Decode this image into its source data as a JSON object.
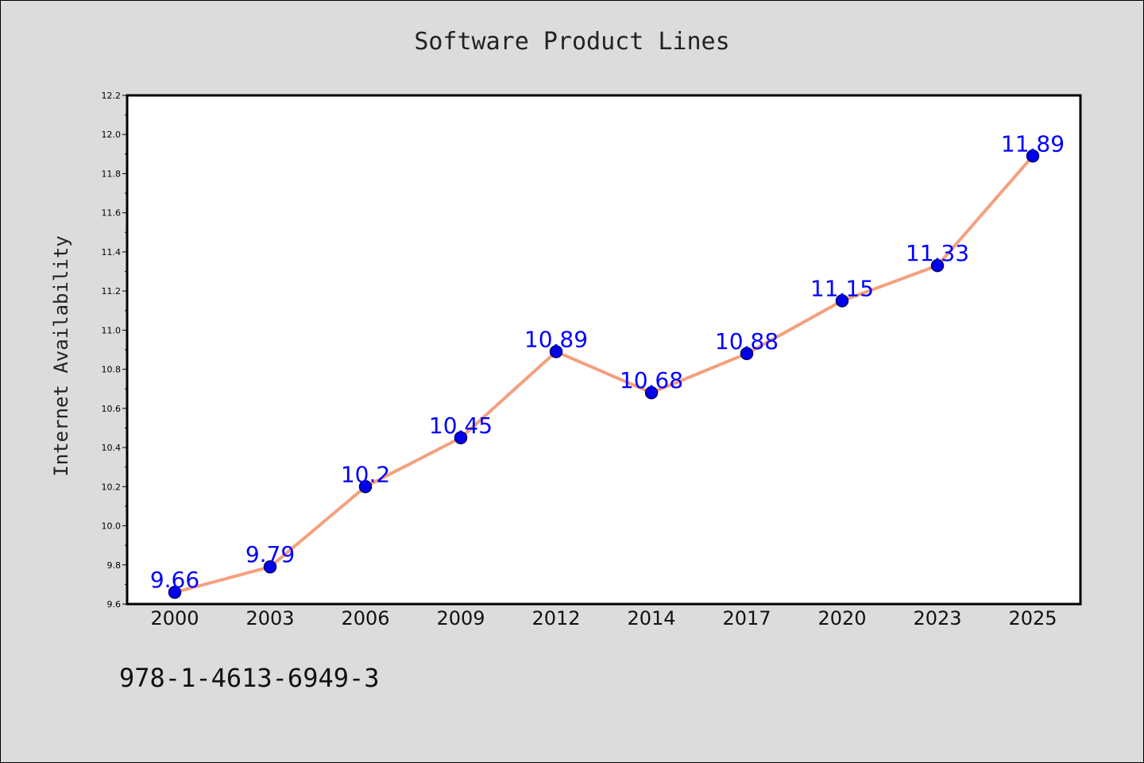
{
  "chart_data": {
    "type": "line",
    "title": "Software Product Lines",
    "xlabel": "",
    "ylabel": "Internet Availability",
    "categories": [
      "2000",
      "2003",
      "2006",
      "2009",
      "2012",
      "2014",
      "2017",
      "2020",
      "2023",
      "2025"
    ],
    "series": [
      {
        "values": [
          9.66,
          9.79,
          10.2,
          10.45,
          10.89,
          10.68,
          10.88,
          11.15,
          11.33,
          11.89
        ],
        "data_labels": [
          "9.66",
          "9.79",
          "10.2",
          "10.45",
          "10.89",
          "10.68",
          "10.88",
          "11.15",
          "11.33",
          "11.89"
        ]
      }
    ],
    "ylim": [
      9.6,
      12.2
    ],
    "yticks": [
      "9.6",
      "9.8",
      "10.0",
      "10.2",
      "10.4",
      "10.6",
      "10.8",
      "11.0",
      "11.2",
      "11.4",
      "11.6",
      "11.8",
      "12.0",
      "12.2"
    ],
    "grid": false,
    "legend": "none",
    "footnote": "978-1-4613-6949-3",
    "colors": {
      "line": "#f4a07e",
      "marker_fill": "#0000ee",
      "marker_edge": "#000066",
      "data_label": "#0000ff",
      "background": "#dcdcdc",
      "plot_area": "#ffffff"
    }
  }
}
